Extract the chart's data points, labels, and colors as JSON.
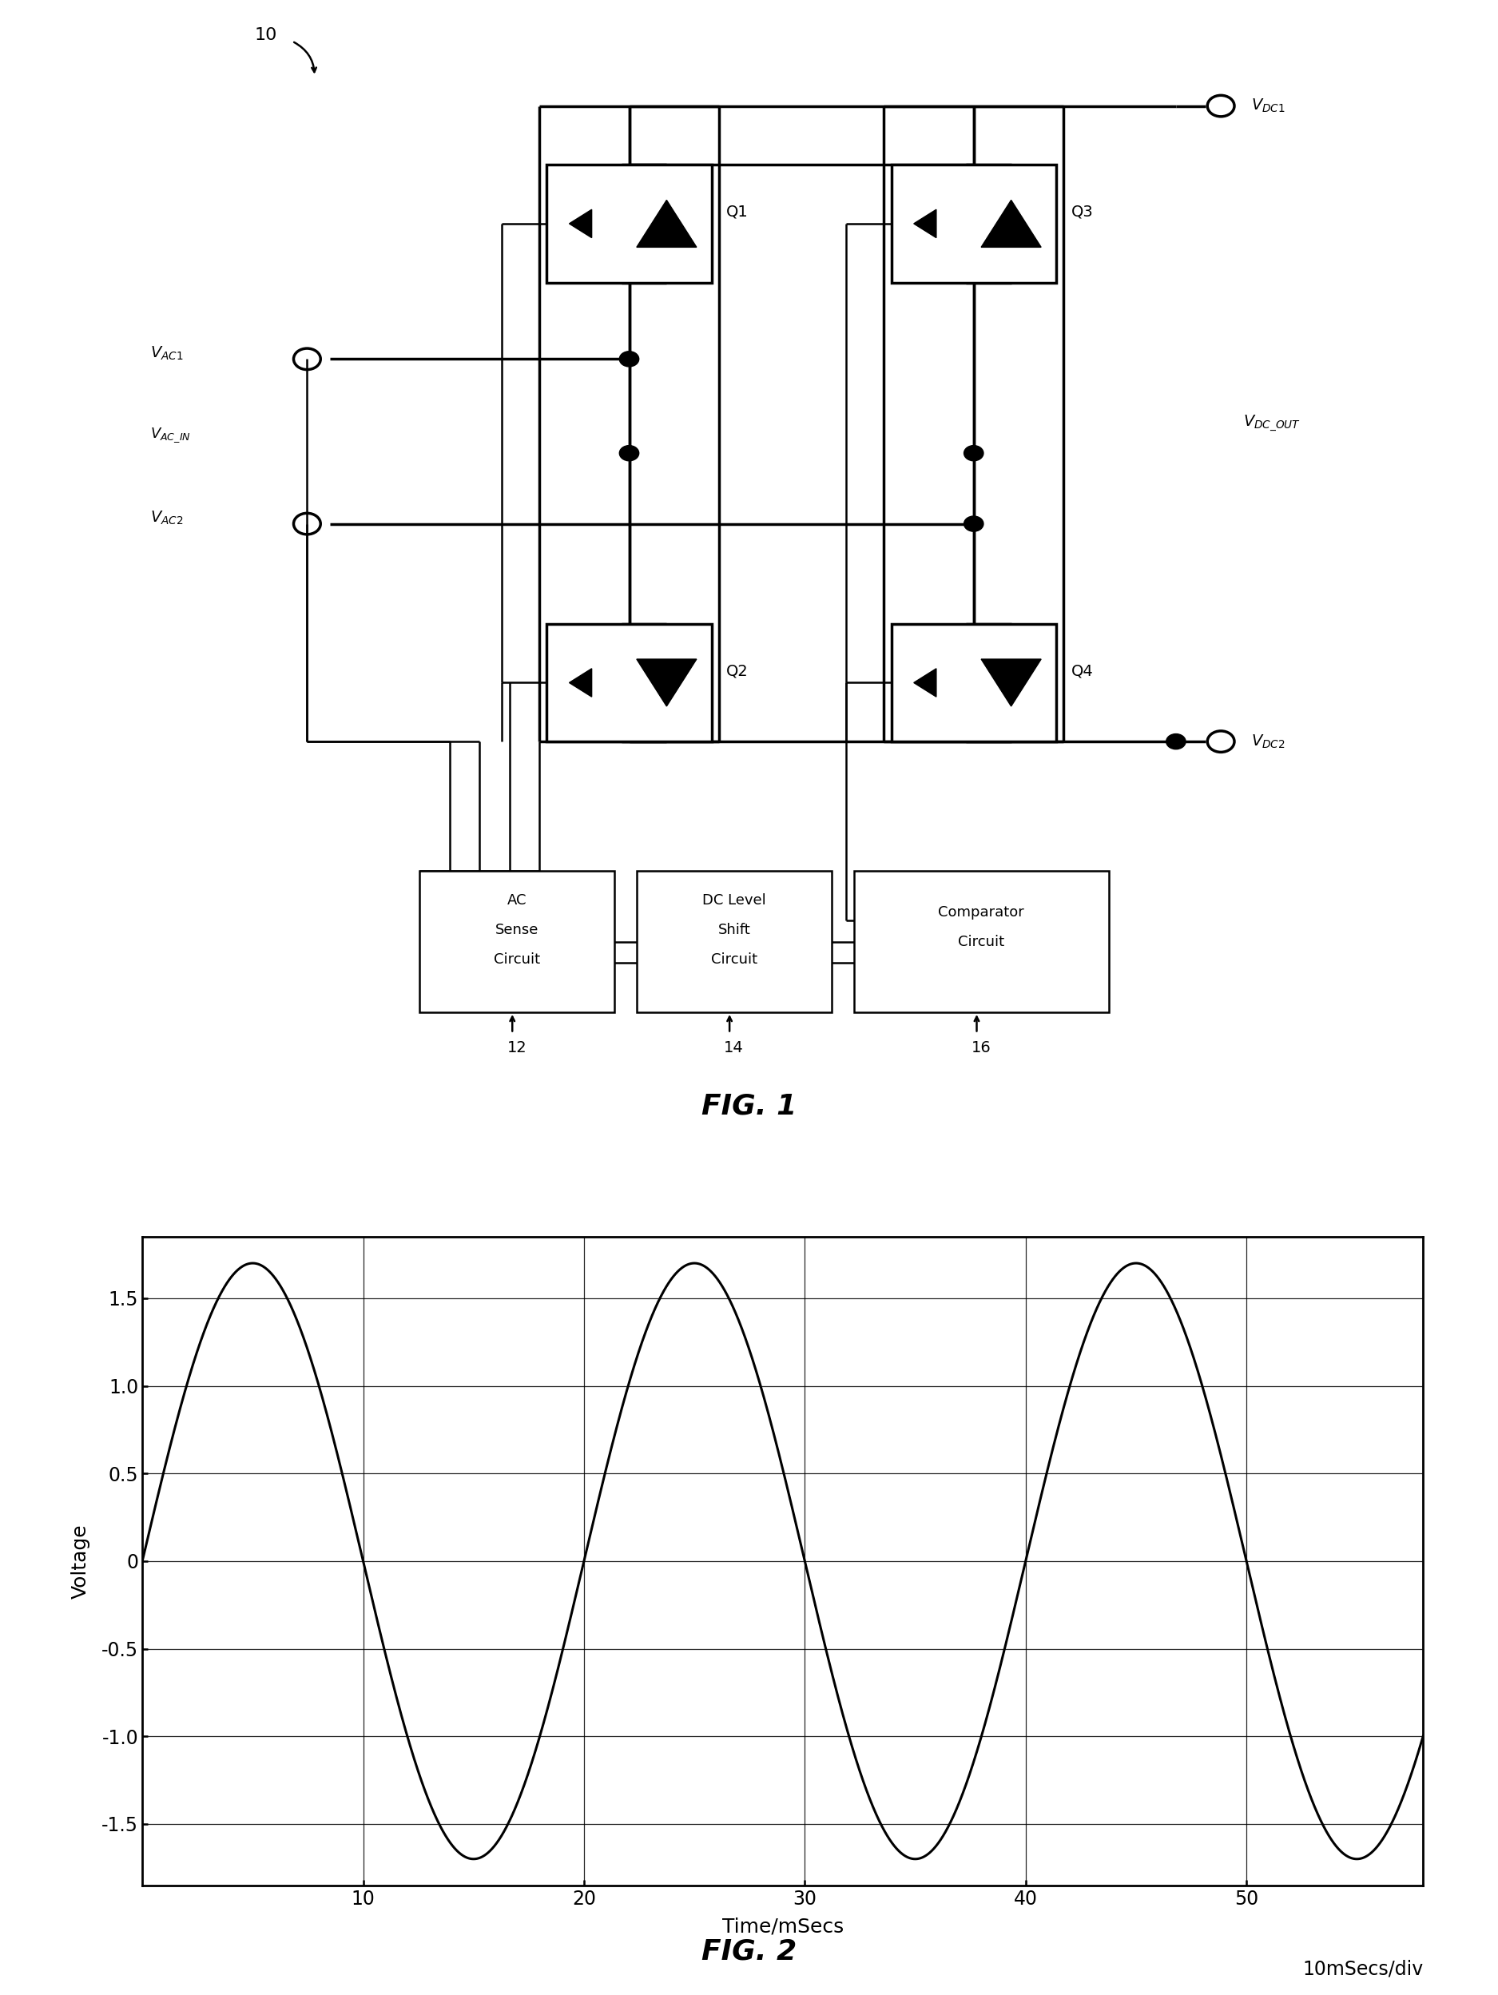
{
  "fig1_title": "FIG. 1",
  "fig2_title": "FIG. 2",
  "fig_label": "10",
  "plot_amplitude": 1.7,
  "plot_frequency_hz": 50,
  "plot_xlabel": "Time/mSecs",
  "plot_xlabel2": "10mSecs/div",
  "plot_ylabel": "Voltage",
  "plot_yticks": [
    -1.5,
    -1.0,
    -0.5,
    0,
    0.5,
    1.0,
    1.5
  ],
  "plot_xticks": [
    10,
    20,
    30,
    40,
    50
  ],
  "plot_xlim": [
    0,
    58
  ],
  "plot_ylim": [
    -1.85,
    1.85
  ],
  "line_color": "#000000",
  "bg_color": "#ffffff",
  "lw_main": 2.5,
  "lw_thin": 1.8,
  "mosfet_arrow_color": "#000000",
  "diode_outline_color": "#000000"
}
